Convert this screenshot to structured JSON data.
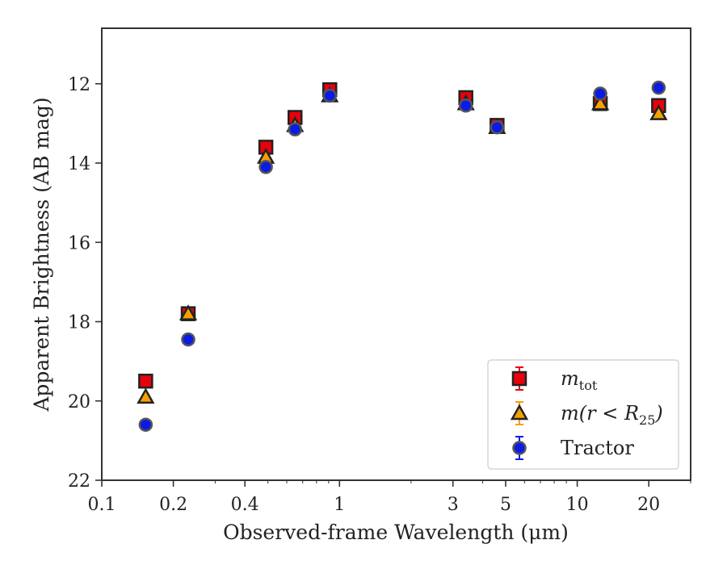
{
  "chart_data": {
    "type": "scatter",
    "xlabel": "Observed-frame Wavelength (μm)",
    "ylabel": "Apparent Brightness (AB mag)",
    "x_scale": "log",
    "xlim": [
      0.1,
      30
    ],
    "ylim": [
      22,
      10.6
    ],
    "y_inverted": true,
    "x_ticks": [
      {
        "value": 0.1,
        "label": "0.1"
      },
      {
        "value": 0.2,
        "label": "0.2"
      },
      {
        "value": 0.4,
        "label": "0.4"
      },
      {
        "value": 1,
        "label": "1"
      },
      {
        "value": 3,
        "label": "3"
      },
      {
        "value": 5,
        "label": "5"
      },
      {
        "value": 10,
        "label": "10"
      },
      {
        "value": 20,
        "label": "20"
      }
    ],
    "y_ticks": [
      {
        "value": 12,
        "label": "12"
      },
      {
        "value": 14,
        "label": "14"
      },
      {
        "value": 16,
        "label": "16"
      },
      {
        "value": 18,
        "label": "18"
      },
      {
        "value": 20,
        "label": "20"
      },
      {
        "value": 22,
        "label": "22"
      }
    ],
    "legend_position": "lower-right",
    "series": [
      {
        "name": "m_tot",
        "marker": "square",
        "color": "#e8000b",
        "points": [
          {
            "x": 0.153,
            "y": 19.5
          },
          {
            "x": 0.231,
            "y": 17.8
          },
          {
            "x": 0.49,
            "y": 13.6
          },
          {
            "x": 0.65,
            "y": 12.85
          },
          {
            "x": 0.91,
            "y": 12.15
          },
          {
            "x": 3.4,
            "y": 12.35
          },
          {
            "x": 4.6,
            "y": 13.05
          },
          {
            "x": 12.5,
            "y": 12.5
          },
          {
            "x": 22.0,
            "y": 12.55
          }
        ]
      },
      {
        "name": "m(r < R25)",
        "marker": "triangle",
        "color": "#f5a000",
        "points": [
          {
            "x": 0.153,
            "y": 19.9
          },
          {
            "x": 0.231,
            "y": 17.8
          },
          {
            "x": 0.49,
            "y": 13.85
          },
          {
            "x": 0.65,
            "y": 13.05
          },
          {
            "x": 0.91,
            "y": 12.3
          },
          {
            "x": 3.4,
            "y": 12.5
          },
          {
            "x": 4.6,
            "y": 13.1
          },
          {
            "x": 12.5,
            "y": 12.5
          },
          {
            "x": 22.0,
            "y": 12.75
          }
        ]
      },
      {
        "name": "Tractor",
        "marker": "circle",
        "color": "#0a1be6",
        "points": [
          {
            "x": 0.153,
            "y": 20.6
          },
          {
            "x": 0.231,
            "y": 18.45
          },
          {
            "x": 0.49,
            "y": 14.1
          },
          {
            "x": 0.65,
            "y": 13.15
          },
          {
            "x": 0.91,
            "y": 12.3
          },
          {
            "x": 3.4,
            "y": 12.55
          },
          {
            "x": 4.6,
            "y": 13.1
          },
          {
            "x": 12.5,
            "y": 12.25
          },
          {
            "x": 22.0,
            "y": 12.1
          }
        ]
      }
    ],
    "legend": {
      "entries": [
        {
          "series": 0,
          "main": "m",
          "sub": "tot",
          "suffix": ""
        },
        {
          "series": 1,
          "main": "m(r < R",
          "sub": "25",
          "suffix": ")"
        },
        {
          "series": 2,
          "main": "Tractor",
          "sub": "",
          "suffix": ""
        }
      ]
    }
  }
}
